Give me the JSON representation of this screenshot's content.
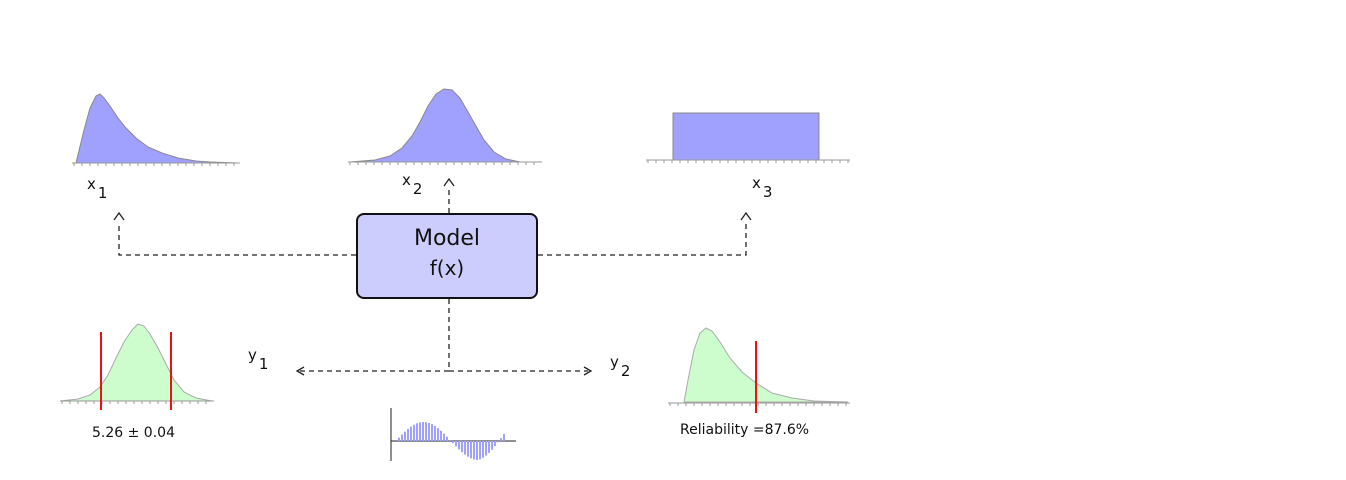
{
  "colors": {
    "input_fill": "#a0a0ff",
    "input_stroke": "#888888",
    "output_fill": "#cdfdcd",
    "output_stroke": "#aaaaaa",
    "limit_line": "#ee1111",
    "model_fill": "#cdcdfd",
    "axis": "#999999"
  },
  "icons": {
    "arrow_up": "caret-up-icon",
    "arrow_left": "arrow-left-icon",
    "arrow_right": "arrow-right-icon"
  },
  "model": {
    "title": "Model",
    "function": "f(x)"
  },
  "inputs": [
    {
      "var": "x",
      "sub": "1",
      "shape": "right-skewed"
    },
    {
      "var": "x",
      "sub": "2",
      "shape": "normal"
    },
    {
      "var": "x",
      "sub": "3",
      "shape": "uniform"
    }
  ],
  "outputs": [
    {
      "var": "y",
      "sub": "1",
      "shape": "normal",
      "caption": "5.26 ± 0.04"
    },
    {
      "var": "y",
      "sub": "2",
      "shape": "right-skewed",
      "caption": "Reliability =87.6%"
    }
  ],
  "response_plot": {
    "shape": "sine"
  }
}
